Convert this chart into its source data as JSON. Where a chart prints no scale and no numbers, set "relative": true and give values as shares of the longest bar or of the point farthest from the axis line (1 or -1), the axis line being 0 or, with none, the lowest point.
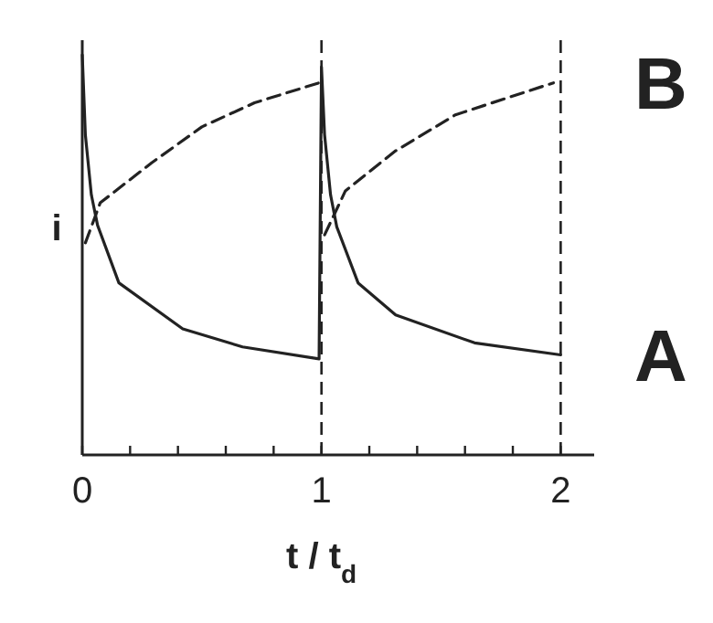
{
  "chart_data": {
    "type": "line",
    "relative": true,
    "xlabel": "t / t$_{d}$",
    "ylabel": "i",
    "xlim": [
      0,
      2.14
    ],
    "xticks": [
      0,
      {
        "value": 0.2,
        "label": null
      },
      {
        "value": 0.4,
        "label": null
      },
      {
        "value": 0.6,
        "label": null
      },
      {
        "value": 0.8,
        "label": null
      },
      1,
      {
        "value": 1.2,
        "label": null
      },
      {
        "value": 1.4,
        "label": null
      },
      {
        "value": 1.6,
        "label": null
      },
      {
        "value": 1.8,
        "label": null
      },
      2
    ],
    "series": [
      {
        "name": "A",
        "color": "#222222",
        "line_style": "solid",
        "x": [
          0,
          0.013,
          0.038,
          0.064,
          0.153,
          0.42,
          0.67,
          0.99,
          1.0,
          1.013,
          1.038,
          1.064,
          1.153,
          1.31,
          1.64,
          2.0
        ],
        "values": [
          1.0,
          0.8,
          0.65,
          0.574,
          0.43,
          0.315,
          0.27,
          0.24,
          0.97,
          0.8,
          0.65,
          0.57,
          0.43,
          0.35,
          0.28,
          0.25
        ]
      },
      {
        "name": "B",
        "color": "#222222",
        "line_style": "dashed",
        "x": [
          0.013,
          0.075,
          0.29,
          0.5,
          0.72,
          0.99,
          1.0,
          1.013,
          1.1,
          1.31,
          1.56,
          1.97
        ],
        "values": [
          0.53,
          0.63,
          0.73,
          0.82,
          0.88,
          0.93,
          null,
          0.55,
          0.66,
          0.76,
          0.85,
          0.93
        ]
      }
    ],
    "ref_lines": [
      {
        "axis": "x",
        "value": 1,
        "color": "#222222",
        "line_style": "dashed"
      },
      {
        "axis": "x",
        "value": 2,
        "color": "#222222",
        "line_style": "dashed"
      }
    ]
  }
}
